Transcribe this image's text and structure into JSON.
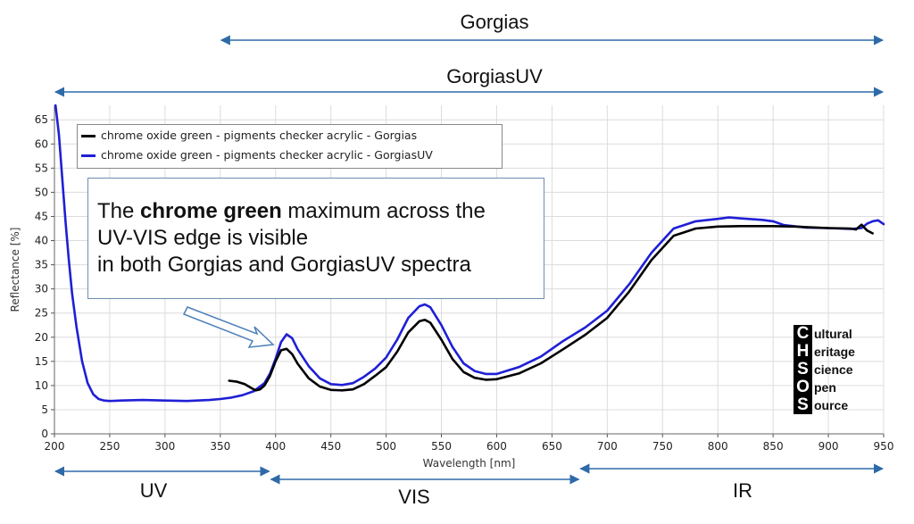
{
  "header": {
    "gorgias_label": "Gorgias",
    "gorgiasuv_label": "GorgiasUV"
  },
  "footer": {
    "uv_label": "UV",
    "vis_label": "VIS",
    "ir_label": "IR"
  },
  "note": {
    "text_a": "The ",
    "text_bold": "chrome green",
    "text_b": " maximum across the",
    "line2": "UV-VIS edge is visible",
    "line3": "in both Gorgias and GorgiasUV spectra"
  },
  "logo": {
    "letters": [
      "C",
      "H",
      "S",
      "O",
      "S"
    ],
    "words": [
      "ultural",
      "eritage",
      "cience",
      "pen",
      "ource"
    ]
  },
  "colors": {
    "gorgias": "#000000",
    "gorgiasuv": "#1f1fd6",
    "range_arrow": "#2e6aa8",
    "grid": "#dcdcdc"
  },
  "chart_data": {
    "type": "line",
    "xlabel": "Wavelength [nm]",
    "ylabel": "Reflectance [%]",
    "xlim": [
      200,
      950
    ],
    "ylim": [
      0,
      68
    ],
    "x_ticks": [
      200,
      250,
      300,
      350,
      400,
      450,
      500,
      550,
      600,
      650,
      700,
      750,
      800,
      850,
      900,
      950
    ],
    "y_ticks": [
      0,
      5,
      10,
      15,
      20,
      25,
      30,
      35,
      40,
      45,
      50,
      55,
      60,
      65
    ],
    "grid": true,
    "legend_position": "top-left",
    "ranges": [
      {
        "name": "Gorgias",
        "start": 350,
        "end": 950
      },
      {
        "name": "GorgiasUV",
        "start": 200,
        "end": 950
      },
      {
        "name": "UV",
        "start": 200,
        "end": 395
      },
      {
        "name": "VIS",
        "start": 395,
        "end": 675
      },
      {
        "name": "IR",
        "start": 675,
        "end": 950
      }
    ],
    "series": [
      {
        "name": "chrome oxide green - pigments checker acrylic - Gorgias",
        "x": [
          358,
          365,
          372,
          378,
          382,
          386,
          390,
          395,
          400,
          405,
          410,
          415,
          420,
          430,
          440,
          450,
          460,
          470,
          480,
          490,
          500,
          510,
          520,
          530,
          535,
          540,
          550,
          560,
          570,
          580,
          590,
          600,
          620,
          640,
          660,
          680,
          700,
          720,
          740,
          760,
          780,
          800,
          820,
          850,
          870,
          880,
          900,
          920,
          925,
          930,
          935,
          940
        ],
        "y": [
          11,
          10.8,
          10.3,
          9.5,
          9,
          9.2,
          10,
          12,
          15,
          17.3,
          17.6,
          16.5,
          14.5,
          11.5,
          9.8,
          9.1,
          9,
          9.2,
          10.3,
          12,
          13.8,
          17,
          21,
          23.3,
          23.6,
          23,
          19.5,
          15.5,
          12.8,
          11.6,
          11.2,
          11.3,
          12.5,
          14.6,
          17.5,
          20.5,
          24,
          29.5,
          36,
          41,
          42.5,
          42.9,
          43,
          43,
          42.9,
          42.8,
          42.6,
          42.5,
          42.3,
          43.3,
          42.1,
          41.5
        ]
      },
      {
        "name": "chrome oxide green - pigments checker acrylic - GorgiasUV",
        "x": [
          201,
          204,
          207,
          210,
          213,
          216,
          220,
          225,
          230,
          235,
          240,
          245,
          250,
          260,
          280,
          300,
          320,
          340,
          350,
          360,
          370,
          380,
          390,
          395,
          400,
          405,
          410,
          415,
          420,
          430,
          440,
          450,
          460,
          470,
          480,
          490,
          500,
          510,
          520,
          530,
          535,
          540,
          550,
          560,
          570,
          580,
          590,
          600,
          620,
          640,
          660,
          680,
          700,
          720,
          740,
          760,
          780,
          800,
          810,
          820,
          840,
          850,
          860,
          880,
          900,
          920,
          930,
          935,
          940,
          945,
          950
        ],
        "y": [
          68,
          62,
          53,
          44,
          36,
          29,
          22,
          15,
          10.5,
          8.2,
          7.2,
          6.9,
          6.8,
          6.9,
          7,
          6.9,
          6.8,
          7,
          7.2,
          7.5,
          8,
          8.8,
          10.5,
          12.5,
          15.5,
          19,
          20.6,
          19.8,
          17.5,
          14,
          11.5,
          10.3,
          10.1,
          10.5,
          11.8,
          13.5,
          15.8,
          19.5,
          24,
          26.4,
          26.8,
          26.2,
          22.5,
          18,
          14.6,
          13,
          12.4,
          12.4,
          13.8,
          16,
          19.2,
          22,
          25.5,
          31,
          37.5,
          42.5,
          44,
          44.5,
          44.8,
          44.6,
          44.3,
          44,
          43.2,
          42.7,
          42.6,
          42.4,
          42.6,
          43.5,
          44,
          44.2,
          43.4
        ]
      }
    ]
  }
}
